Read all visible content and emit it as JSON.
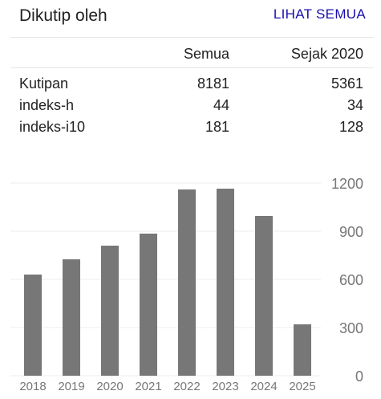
{
  "header": {
    "title": "Dikutip oleh",
    "see_all": "LIHAT SEMUA"
  },
  "table": {
    "columns": [
      "Semua",
      "Sejak 2020"
    ],
    "rows": [
      {
        "label": "Kutipan",
        "all": "8181",
        "since": "5361"
      },
      {
        "label": "indeks-h",
        "all": "44",
        "since": "34"
      },
      {
        "label": "indeks-i10",
        "all": "181",
        "since": "128"
      }
    ]
  },
  "chart_data": {
    "type": "bar",
    "categories": [
      "2018",
      "2019",
      "2020",
      "2021",
      "2022",
      "2023",
      "2024",
      "2025"
    ],
    "values": [
      630,
      725,
      810,
      885,
      1160,
      1165,
      995,
      320
    ],
    "y_ticks": [
      0,
      300,
      600,
      900,
      1200
    ],
    "ylim": [
      0,
      1200
    ],
    "bar_color": "#777777",
    "grid": true
  }
}
